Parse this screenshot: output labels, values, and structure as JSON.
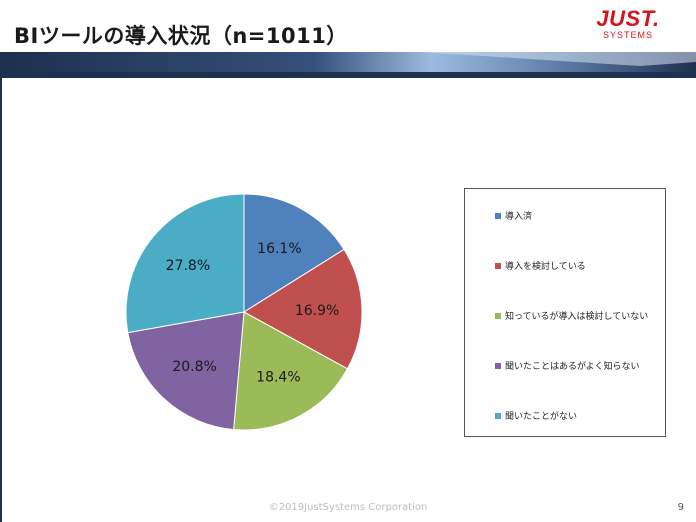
{
  "slide": {
    "title": "BIツールの導入状況（n=1011）",
    "logo_main": "JUST.",
    "logo_sub": "SYSTEMS",
    "footer": "©2019JustSystems Corporation",
    "page_number": "9",
    "colors": {
      "brand": "#d7141c",
      "header_dark": "#1f2f4f",
      "header_light": "#8fb0d8"
    }
  },
  "chart_data": {
    "type": "pie",
    "title": "",
    "categories": [
      "導入済",
      "導入を検討している",
      "知っているが導入は検討していない",
      "聞いたことはあるがよく知らない",
      "聞いたことがない"
    ],
    "values": [
      16.1,
      16.9,
      18.4,
      20.8,
      27.8
    ],
    "labels": [
      "16.1%",
      "16.9%",
      "18.4%",
      "20.8%",
      "27.8%"
    ],
    "colors": [
      "#4f81bd",
      "#c0504d",
      "#9bbb59",
      "#8064a2",
      "#4bacc6"
    ],
    "start_angle": "12 o'clock",
    "direction": "clockwise",
    "legend_position": "right"
  }
}
